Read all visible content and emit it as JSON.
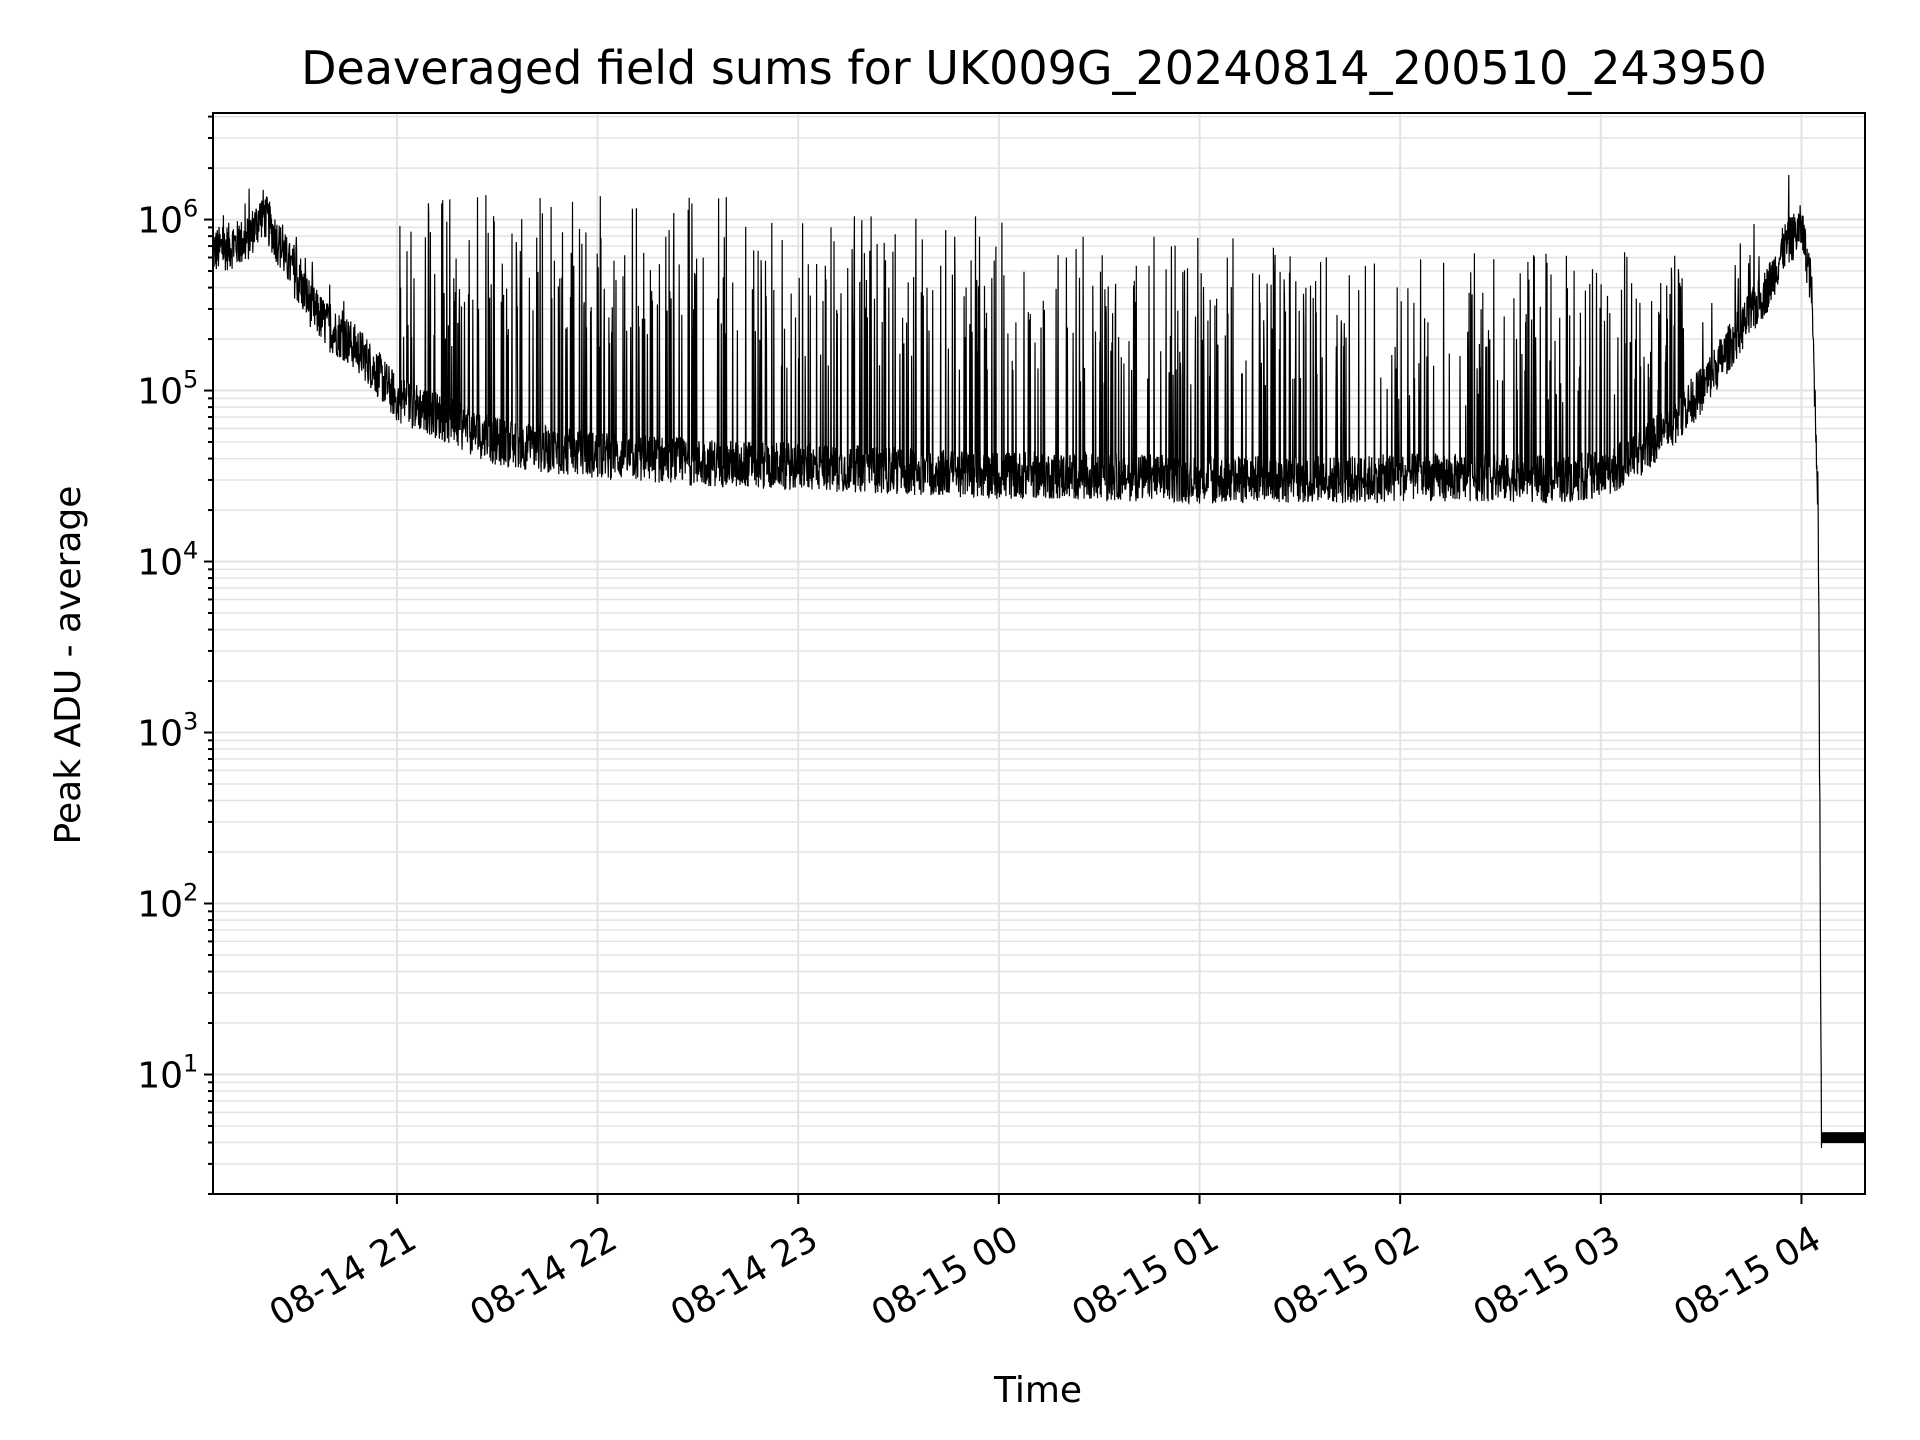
{
  "chart_data": {
    "type": "line",
    "title": "Deaveraged field sums for UK009G_20240814_200510_243950",
    "xlabel": "Time",
    "ylabel": "Peak ADU - average",
    "yscale": "log",
    "ylim": [
      2,
      4200000
    ],
    "xlim": [
      "2024-08-14 20:05",
      "2024-08-15 04:19"
    ],
    "x_ticks": [
      "2024-08-14 21:00",
      "2024-08-14 22:00",
      "2024-08-14 23:00",
      "2024-08-15 00:00",
      "2024-08-15 01:00",
      "2024-08-15 02:00",
      "2024-08-15 03:00",
      "2024-08-15 04:00"
    ],
    "x_tick_labels": [
      "08-14 21",
      "08-14 22",
      "08-14 23",
      "08-15 00",
      "08-15 01",
      "08-15 02",
      "08-15 03",
      "08-15 04"
    ],
    "y_ticks": [
      {
        "value": 10,
        "base": "10",
        "exp": "1"
      },
      {
        "value": 100,
        "base": "10",
        "exp": "2"
      },
      {
        "value": 1000,
        "base": "10",
        "exp": "3"
      },
      {
        "value": 10000,
        "base": "10",
        "exp": "4"
      },
      {
        "value": 100000,
        "base": "10",
        "exp": "5"
      },
      {
        "value": 1000000,
        "base": "10",
        "exp": "6"
      }
    ],
    "grid": true,
    "line_color": "#000000",
    "series": [
      {
        "x": [
          "2024-08-14 20:05",
          "2024-08-14 20:10",
          "2024-08-14 20:15",
          "2024-08-14 20:20",
          "2024-08-14 20:25",
          "2024-08-14 20:30",
          "2024-08-14 20:35",
          "2024-08-14 20:40",
          "2024-08-14 20:45",
          "2024-08-14 20:50",
          "2024-08-14 20:55",
          "2024-08-14 21:00",
          "2024-08-14 21:10",
          "2024-08-14 21:20",
          "2024-08-14 21:30",
          "2024-08-14 21:45",
          "2024-08-14 22:00",
          "2024-08-14 22:15",
          "2024-08-14 22:30",
          "2024-08-14 22:45",
          "2024-08-14 23:00",
          "2024-08-14 23:15",
          "2024-08-14 23:30",
          "2024-08-14 23:45",
          "2024-08-15 00:00",
          "2024-08-15 00:15",
          "2024-08-15 00:30",
          "2024-08-15 00:45",
          "2024-08-15 01:00",
          "2024-08-15 01:15",
          "2024-08-15 01:30",
          "2024-08-15 01:45",
          "2024-08-15 02:00",
          "2024-08-15 02:15",
          "2024-08-15 02:30",
          "2024-08-15 02:45",
          "2024-08-15 03:00",
          "2024-08-15 03:10",
          "2024-08-15 03:20",
          "2024-08-15 03:30",
          "2024-08-15 03:40",
          "2024-08-15 03:50",
          "2024-08-15 03:55",
          "2024-08-15 04:00",
          "2024-08-15 04:03",
          "2024-08-15 04:05",
          "2024-08-15 04:06",
          "2024-08-15 04:07",
          "2024-08-15 04:10",
          "2024-08-15 04:19"
        ],
        "values": [
          650000,
          700000,
          750000,
          1100000,
          700000,
          450000,
          300000,
          230000,
          200000,
          160000,
          120000,
          90000,
          75000,
          60000,
          50000,
          45000,
          42000,
          40000,
          38000,
          37000,
          36000,
          35000,
          34000,
          33000,
          32000,
          32000,
          31000,
          31000,
          30000,
          30000,
          30000,
          30000,
          31000,
          31000,
          31000,
          30000,
          32000,
          40000,
          60000,
          100000,
          200000,
          400000,
          700000,
          900000,
          400000,
          22000,
          4,
          4,
          4,
          4
        ],
        "spike_windows": [
          {
            "from": "2024-08-14 21:00",
            "to": "2024-08-14 22:50",
            "peak": 1400000
          },
          {
            "from": "2024-08-14 22:50",
            "to": "2024-08-15 00:05",
            "peak": 1050000
          },
          {
            "from": "2024-08-15 00:05",
            "to": "2024-08-15 01:30",
            "peak": 800000
          },
          {
            "from": "2024-08-15 01:30",
            "to": "2024-08-15 03:25",
            "peak": 650000
          }
        ]
      }
    ]
  }
}
